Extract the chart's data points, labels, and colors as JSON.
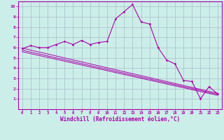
{
  "xlabel": "Windchill (Refroidissement éolien,°C)",
  "bg_color": "#cceee8",
  "line_color": "#aa00aa",
  "grid_color": "#aabbcc",
  "x_values": [
    0,
    1,
    2,
    3,
    4,
    5,
    6,
    7,
    8,
    9,
    10,
    11,
    12,
    13,
    14,
    15,
    16,
    17,
    18,
    19,
    20,
    21,
    22,
    23
  ],
  "curve1": [
    5.9,
    6.2,
    6.0,
    6.0,
    6.3,
    6.6,
    6.3,
    6.7,
    6.3,
    6.5,
    6.6,
    8.8,
    9.5,
    10.2,
    8.5,
    8.3,
    6.0,
    4.8,
    4.4,
    2.8,
    2.7,
    1.0,
    2.2,
    1.5
  ],
  "line1_start": 5.95,
  "line1_end": 1.55,
  "line2_start": 5.75,
  "line2_end": 1.45,
  "line3_start": 5.6,
  "line3_end": 1.35,
  "ylim": [
    0,
    10.5
  ],
  "xlim": [
    -0.5,
    23.5
  ],
  "yticks": [
    1,
    2,
    3,
    4,
    5,
    6,
    7,
    8,
    9,
    10
  ],
  "xticks": [
    0,
    1,
    2,
    3,
    4,
    5,
    6,
    7,
    8,
    9,
    10,
    11,
    12,
    13,
    14,
    15,
    16,
    17,
    18,
    19,
    20,
    21,
    22,
    23
  ]
}
